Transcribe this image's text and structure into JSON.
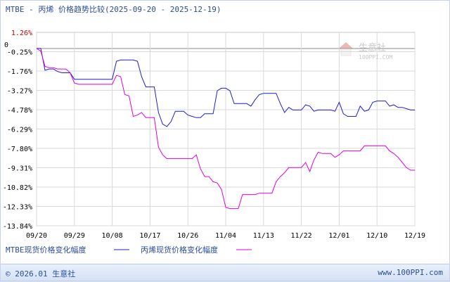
{
  "title": "MTBE - 丙烯  价格趋势比较(2025-09-20 - 2025-12-19)",
  "watermark": {
    "brand": "生意社",
    "url": "100PPI.COM"
  },
  "footer": {
    "copyright": "© 2026.01 生意社",
    "site": "www.100PPI.com"
  },
  "colors": {
    "series1": "#1f1fd0",
    "series2": "#e000e0",
    "title": "#2b4c9b",
    "axis_label": "#000000",
    "ymax_label": "#c00000",
    "grid": "#d9d9d9"
  },
  "chart_data": {
    "type": "line",
    "title": "MTBE - 丙烯  价格趋势比较(2025-09-20 - 2025-12-19)",
    "x_tick_labels": [
      "09/20",
      "09/29",
      "10/08",
      "10/17",
      "10/26",
      "11/04",
      "11/13",
      "11/22",
      "12/01",
      "12/10",
      "12/19"
    ],
    "y_tick_labels": [
      "1.26%",
      "0",
      "-0.25%",
      "-1.76%",
      "-3.27%",
      "-4.78%",
      "-6.29%",
      "-7.80%",
      "-9.31%",
      "-10.82%",
      "-12.33%",
      "-13.84%"
    ],
    "ylim": [
      -13.84,
      1.26
    ],
    "grid": true,
    "legend_position": "bottom-left",
    "series": [
      {
        "name": "MTBE现货价格变化幅度",
        "points": [
          [
            "09/20",
            0
          ],
          [
            "09/21",
            0
          ],
          [
            "09/22",
            -1.7
          ],
          [
            "09/23",
            -1.6
          ],
          [
            "09/24",
            -1.6
          ],
          [
            "09/25",
            -1.8
          ],
          [
            "09/26",
            -1.9
          ],
          [
            "09/27",
            -1.9
          ],
          [
            "09/28",
            -1.9
          ],
          [
            "09/29",
            -2.4
          ],
          [
            "09/30",
            -2.4
          ],
          [
            "10/01",
            -2.4
          ],
          [
            "10/02",
            -2.4
          ],
          [
            "10/03",
            -2.4
          ],
          [
            "10/04",
            -2.4
          ],
          [
            "10/05",
            -2.4
          ],
          [
            "10/06",
            -2.4
          ],
          [
            "10/07",
            -2.4
          ],
          [
            "10/08",
            -2.4
          ],
          [
            "10/09",
            -1.0
          ],
          [
            "10/10",
            -0.9
          ],
          [
            "10/11",
            -0.9
          ],
          [
            "10/12",
            -0.9
          ],
          [
            "10/13",
            -0.9
          ],
          [
            "10/14",
            -1.0
          ],
          [
            "10/15",
            -2.2
          ],
          [
            "10/16",
            -3.0
          ],
          [
            "10/17",
            -3.0
          ],
          [
            "10/18",
            -3.0
          ],
          [
            "10/19",
            -5.0
          ],
          [
            "10/20",
            -5.9
          ],
          [
            "10/21",
            -6.1
          ],
          [
            "10/22",
            -5.7
          ],
          [
            "10/23",
            -4.9
          ],
          [
            "10/24",
            -4.9
          ],
          [
            "10/25",
            -4.9
          ],
          [
            "10/26",
            -5.2
          ],
          [
            "10/27",
            -5.3
          ],
          [
            "10/28",
            -5.4
          ],
          [
            "10/29",
            -5.4
          ],
          [
            "10/30",
            -5.1
          ],
          [
            "10/31",
            -5.1
          ],
          [
            "11/01",
            -5.1
          ],
          [
            "11/02",
            -3.3
          ],
          [
            "11/03",
            -3.1
          ],
          [
            "11/04",
            -3.1
          ],
          [
            "11/05",
            -3.3
          ],
          [
            "11/06",
            -4.3
          ],
          [
            "11/07",
            -4.3
          ],
          [
            "11/08",
            -4.3
          ],
          [
            "11/09",
            -4.3
          ],
          [
            "11/10",
            -4.5
          ],
          [
            "11/11",
            -4.0
          ],
          [
            "11/12",
            -3.6
          ],
          [
            "11/13",
            -3.5
          ],
          [
            "11/14",
            -3.5
          ],
          [
            "11/15",
            -3.5
          ],
          [
            "11/16",
            -3.5
          ],
          [
            "11/17",
            -4.3
          ],
          [
            "11/18",
            -5.0
          ],
          [
            "11/19",
            -4.6
          ],
          [
            "11/20",
            -4.8
          ],
          [
            "11/21",
            -4.8
          ],
          [
            "11/22",
            -4.8
          ],
          [
            "11/23",
            -4.4
          ],
          [
            "11/24",
            -4.5
          ],
          [
            "11/25",
            -4.9
          ],
          [
            "11/26",
            -4.8
          ],
          [
            "11/27",
            -4.8
          ],
          [
            "11/28",
            -4.8
          ],
          [
            "11/29",
            -4.8
          ],
          [
            "11/30",
            -4.9
          ],
          [
            "12/01",
            -4.2
          ],
          [
            "12/02",
            -5.1
          ],
          [
            "12/03",
            -5.3
          ],
          [
            "12/04",
            -5.3
          ],
          [
            "12/05",
            -5.3
          ],
          [
            "12/06",
            -4.5
          ],
          [
            "12/07",
            -4.9
          ],
          [
            "12/08",
            -4.8
          ],
          [
            "12/09",
            -4.2
          ],
          [
            "12/10",
            -4.1
          ],
          [
            "12/11",
            -4.1
          ],
          [
            "12/12",
            -4.1
          ],
          [
            "12/13",
            -4.5
          ],
          [
            "12/14",
            -4.4
          ],
          [
            "12/15",
            -4.6
          ],
          [
            "12/16",
            -4.6
          ],
          [
            "12/17",
            -4.7
          ],
          [
            "12/18",
            -4.8
          ],
          [
            "12/19",
            -4.8
          ]
        ]
      },
      {
        "name": "丙烯现货价格变化幅度",
        "points": [
          [
            "09/20",
            0
          ],
          [
            "09/21",
            -0.2
          ],
          [
            "09/22",
            -1.4
          ],
          [
            "09/23",
            -1.5
          ],
          [
            "09/24",
            -1.5
          ],
          [
            "09/25",
            -1.6
          ],
          [
            "09/26",
            -1.6
          ],
          [
            "09/27",
            -1.6
          ],
          [
            "09/28",
            -1.9
          ],
          [
            "09/29",
            -2.7
          ],
          [
            "09/30",
            -2.8
          ],
          [
            "10/01",
            -2.8
          ],
          [
            "10/02",
            -2.8
          ],
          [
            "10/03",
            -2.8
          ],
          [
            "10/04",
            -2.8
          ],
          [
            "10/05",
            -2.8
          ],
          [
            "10/06",
            -2.8
          ],
          [
            "10/07",
            -2.8
          ],
          [
            "10/08",
            -2.8
          ],
          [
            "10/09",
            -2.1
          ],
          [
            "10/10",
            -2.2
          ],
          [
            "10/11",
            -3.6
          ],
          [
            "10/12",
            -3.7
          ],
          [
            "10/13",
            -5.3
          ],
          [
            "10/14",
            -5.2
          ],
          [
            "10/15",
            -5.0
          ],
          [
            "10/16",
            -5.4
          ],
          [
            "10/17",
            -5.4
          ],
          [
            "10/18",
            -5.4
          ],
          [
            "10/19",
            -7.7
          ],
          [
            "10/20",
            -8.3
          ],
          [
            "10/21",
            -8.6
          ],
          [
            "10/22",
            -8.6
          ],
          [
            "10/23",
            -8.6
          ],
          [
            "10/24",
            -8.6
          ],
          [
            "10/25",
            -8.6
          ],
          [
            "10/26",
            -8.6
          ],
          [
            "10/27",
            -8.6
          ],
          [
            "10/28",
            -8.3
          ],
          [
            "10/29",
            -9.4
          ],
          [
            "10/30",
            -10.0
          ],
          [
            "10/31",
            -10.0
          ],
          [
            "11/01",
            -10.4
          ],
          [
            "11/02",
            -10.5
          ],
          [
            "11/03",
            -11.0
          ],
          [
            "11/04",
            -12.4
          ],
          [
            "11/05",
            -12.5
          ],
          [
            "11/06",
            -12.5
          ],
          [
            "11/07",
            -12.5
          ],
          [
            "11/08",
            -11.4
          ],
          [
            "11/09",
            -11.4
          ],
          [
            "11/10",
            -11.4
          ],
          [
            "11/11",
            -11.4
          ],
          [
            "11/12",
            -11.3
          ],
          [
            "11/13",
            -11.3
          ],
          [
            "11/14",
            -11.3
          ],
          [
            "11/15",
            -11.3
          ],
          [
            "11/16",
            -10.4
          ],
          [
            "11/17",
            -10.0
          ],
          [
            "11/18",
            -9.7
          ],
          [
            "11/19",
            -9.3
          ],
          [
            "11/20",
            -9.3
          ],
          [
            "11/21",
            -9.3
          ],
          [
            "11/22",
            -9.3
          ],
          [
            "11/23",
            -8.9
          ],
          [
            "11/24",
            -9.6
          ],
          [
            "11/25",
            -8.7
          ],
          [
            "11/26",
            -8.1
          ],
          [
            "11/27",
            -8.2
          ],
          [
            "11/28",
            -8.2
          ],
          [
            "11/29",
            -8.2
          ],
          [
            "11/30",
            -8.5
          ],
          [
            "12/01",
            -8.3
          ],
          [
            "12/02",
            -8.0
          ],
          [
            "12/03",
            -8.0
          ],
          [
            "12/04",
            -8.0
          ],
          [
            "12/05",
            -8.0
          ],
          [
            "12/06",
            -8.0
          ],
          [
            "12/07",
            -7.6
          ],
          [
            "12/08",
            -7.6
          ],
          [
            "12/09",
            -7.6
          ],
          [
            "12/10",
            -7.6
          ],
          [
            "12/11",
            -7.6
          ],
          [
            "12/12",
            -7.6
          ],
          [
            "12/13",
            -8.0
          ],
          [
            "12/14",
            -8.2
          ],
          [
            "12/15",
            -8.5
          ],
          [
            "12/16",
            -8.9
          ],
          [
            "12/17",
            -9.3
          ],
          [
            "12/18",
            -9.5
          ],
          [
            "12/19",
            -9.5
          ]
        ]
      }
    ]
  }
}
